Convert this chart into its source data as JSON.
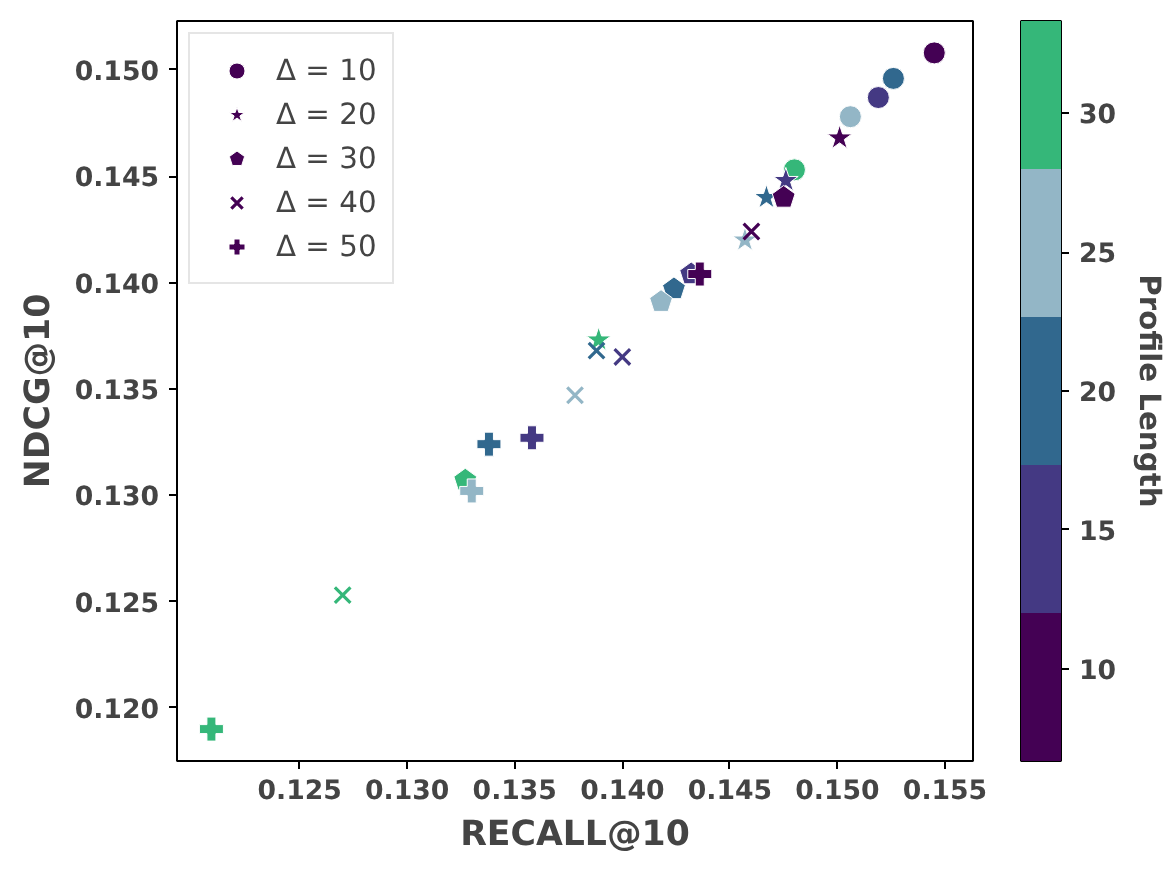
{
  "chart_data": {
    "type": "scatter",
    "xlabel": "RECALL@10",
    "ylabel": "NDCG@10",
    "clabel": "Profile Length",
    "xlim": [
      0.1193,
      0.1563
    ],
    "ylim": [
      0.1175,
      0.1523
    ],
    "xticks": [
      0.125,
      {
        "value": 0.13,
        "label": "0.130"
      },
      0.135,
      {
        "value": 0.14,
        "label": "0.140"
      },
      0.145,
      {
        "value": 0.15,
        "label": "0.150"
      },
      0.155
    ],
    "yticks": [
      {
        "value": 0.12,
        "label": "0.120"
      },
      0.125,
      {
        "value": 0.13,
        "label": "0.130"
      },
      0.135,
      {
        "value": 0.14,
        "label": "0.140"
      },
      0.145,
      {
        "value": 0.15,
        "label": "0.150"
      }
    ],
    "clim": [
      6.67,
      33.33
    ],
    "cticks": [
      10,
      15,
      20,
      25,
      30
    ],
    "colors": [
      "#440154",
      "#443983",
      "#31688e",
      "#93b6c6",
      "#35b779"
    ],
    "legend": "top left",
    "grid": false,
    "series": [
      {
        "name": "Δ = 10",
        "marker": "circle",
        "x": [
          0.1545,
          0.1519,
          0.1526,
          0.1506,
          0.148
        ],
        "values": [
          0.1508,
          0.1487,
          0.1496,
          0.1478,
          0.1453
        ],
        "colors": [
          "#440154",
          "#443983",
          "#31688e",
          "#93b6c6",
          "#35b779"
        ]
      },
      {
        "name": "Δ = 20",
        "marker": "star",
        "x": [
          0.1501,
          0.1476,
          0.1467,
          0.1457,
          0.1389
        ],
        "values": [
          0.1468,
          0.1448,
          0.144,
          0.142,
          0.1373
        ],
        "colors": [
          "#440154",
          "#443983",
          "#31688e",
          "#93b6c6",
          "#35b779"
        ]
      },
      {
        "name": "Δ = 30",
        "x": [
          0.1475,
          0.1432,
          0.1424,
          0.1418,
          0.1327
        ],
        "values": [
          0.144,
          0.1404,
          0.1397,
          0.1391,
          0.1307
        ],
        "colors": [
          "#440154",
          "#443983",
          "#31688e",
          "#93b6c6",
          "#35b779"
        ]
      },
      {
        "name": "Δ = 40",
        "marker": "cross",
        "x": [
          0.146,
          0.14,
          0.1388,
          0.1378,
          0.127
        ],
        "values": [
          0.1424,
          0.1365,
          0.1368,
          0.1347,
          0.1253
        ],
        "colors": [
          "#440154",
          "#443983",
          "#31688e",
          "#93b6c6",
          "#35b779"
        ]
      },
      {
        "name": "Δ = 50",
        "marker": "plus",
        "x": [
          0.1436,
          0.1358,
          0.1338,
          0.133,
          0.1209
        ],
        "values": [
          0.1404,
          0.1327,
          0.1324,
          0.1302,
          0.119
        ],
        "colors": [
          "#440154",
          "#443983",
          "#31688e",
          "#93b6c6",
          "#35b779"
        ]
      }
    ]
  }
}
